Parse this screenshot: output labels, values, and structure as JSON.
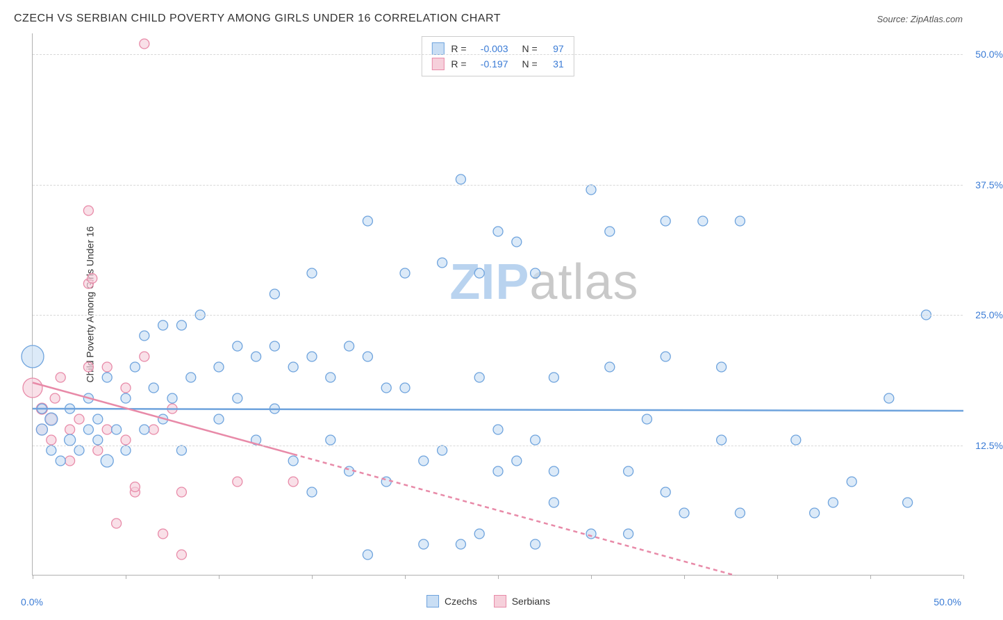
{
  "meta": {
    "title": "CZECH VS SERBIAN CHILD POVERTY AMONG GIRLS UNDER 16 CORRELATION CHART",
    "source": "Source: ZipAtlas.com",
    "watermark_a": "ZIP",
    "watermark_b": "atlas",
    "watermark_color_a": "#b9d3ef",
    "watermark_color_b": "#c9c9c9"
  },
  "chart": {
    "type": "scatter",
    "ylabel": "Child Poverty Among Girls Under 16",
    "xlim": [
      0,
      50
    ],
    "ylim": [
      0,
      52
    ],
    "y_ticks": [
      12.5,
      25.0,
      37.5,
      50.0
    ],
    "y_tick_labels": [
      "12.5%",
      "25.0%",
      "37.5%",
      "50.0%"
    ],
    "x_origin_label": "0.0%",
    "x_max_label": "50.0%",
    "x_tick_positions": [
      0,
      5,
      10,
      15,
      20,
      25,
      30,
      35,
      40,
      45,
      50
    ],
    "background_color": "#ffffff",
    "grid_color": "#d8d8d8",
    "axis_color": "#b0b0b0",
    "series": [
      {
        "name": "Czechs",
        "fill": "#c9def4",
        "stroke": "#6ea3dd",
        "R": "-0.003",
        "N": "97",
        "stat_color": "#3a7bd5",
        "trend": {
          "y_at_x0": 16.0,
          "y_at_x50": 15.8,
          "solid_to_x": 50
        },
        "points": [
          {
            "x": 0,
            "y": 21,
            "r": 16
          },
          {
            "x": 0.5,
            "y": 14,
            "r": 8
          },
          {
            "x": 0.5,
            "y": 16,
            "r": 7
          },
          {
            "x": 1,
            "y": 12,
            "r": 7
          },
          {
            "x": 1,
            "y": 15,
            "r": 9
          },
          {
            "x": 1.5,
            "y": 11,
            "r": 7
          },
          {
            "x": 2,
            "y": 13,
            "r": 8
          },
          {
            "x": 2,
            "y": 16,
            "r": 7
          },
          {
            "x": 2.5,
            "y": 12,
            "r": 7
          },
          {
            "x": 3,
            "y": 14,
            "r": 7
          },
          {
            "x": 3,
            "y": 17,
            "r": 7
          },
          {
            "x": 3.5,
            "y": 13,
            "r": 7
          },
          {
            "x": 3.5,
            "y": 15,
            "r": 7
          },
          {
            "x": 4,
            "y": 11,
            "r": 9
          },
          {
            "x": 4,
            "y": 19,
            "r": 7
          },
          {
            "x": 4.5,
            "y": 14,
            "r": 7
          },
          {
            "x": 5,
            "y": 12,
            "r": 7
          },
          {
            "x": 5,
            "y": 17,
            "r": 7
          },
          {
            "x": 5.5,
            "y": 20,
            "r": 7
          },
          {
            "x": 6,
            "y": 14,
            "r": 7
          },
          {
            "x": 6,
            "y": 23,
            "r": 7
          },
          {
            "x": 6.5,
            "y": 18,
            "r": 7
          },
          {
            "x": 7,
            "y": 15,
            "r": 7
          },
          {
            "x": 7,
            "y": 24,
            "r": 7
          },
          {
            "x": 7.5,
            "y": 17,
            "r": 7
          },
          {
            "x": 8,
            "y": 24,
            "r": 7
          },
          {
            "x": 8,
            "y": 12,
            "r": 7
          },
          {
            "x": 8.5,
            "y": 19,
            "r": 7
          },
          {
            "x": 9,
            "y": 25,
            "r": 7
          },
          {
            "x": 10,
            "y": 20,
            "r": 7
          },
          {
            "x": 10,
            "y": 15,
            "r": 7
          },
          {
            "x": 11,
            "y": 22,
            "r": 7
          },
          {
            "x": 11,
            "y": 17,
            "r": 7
          },
          {
            "x": 12,
            "y": 21,
            "r": 7
          },
          {
            "x": 12,
            "y": 13,
            "r": 7
          },
          {
            "x": 13,
            "y": 27,
            "r": 7
          },
          {
            "x": 13,
            "y": 22,
            "r": 7
          },
          {
            "x": 13,
            "y": 16,
            "r": 7
          },
          {
            "x": 14,
            "y": 20,
            "r": 7
          },
          {
            "x": 14,
            "y": 11,
            "r": 7
          },
          {
            "x": 15,
            "y": 21,
            "r": 7
          },
          {
            "x": 15,
            "y": 29,
            "r": 7
          },
          {
            "x": 15,
            "y": 8,
            "r": 7
          },
          {
            "x": 16,
            "y": 19,
            "r": 7
          },
          {
            "x": 16,
            "y": 13,
            "r": 7
          },
          {
            "x": 17,
            "y": 22,
            "r": 7
          },
          {
            "x": 17,
            "y": 10,
            "r": 7
          },
          {
            "x": 18,
            "y": 21,
            "r": 7
          },
          {
            "x": 18,
            "y": 34,
            "r": 7
          },
          {
            "x": 18,
            "y": 2,
            "r": 7
          },
          {
            "x": 19,
            "y": 18,
            "r": 7
          },
          {
            "x": 19,
            "y": 9,
            "r": 7
          },
          {
            "x": 20,
            "y": 29,
            "r": 7
          },
          {
            "x": 20,
            "y": 18,
            "r": 7
          },
          {
            "x": 21,
            "y": 3,
            "r": 7
          },
          {
            "x": 21,
            "y": 11,
            "r": 7
          },
          {
            "x": 22,
            "y": 30,
            "r": 7
          },
          {
            "x": 22,
            "y": 12,
            "r": 7
          },
          {
            "x": 23,
            "y": 38,
            "r": 7
          },
          {
            "x": 23,
            "y": 3,
            "r": 7
          },
          {
            "x": 24,
            "y": 19,
            "r": 7
          },
          {
            "x": 24,
            "y": 4,
            "r": 7
          },
          {
            "x": 24,
            "y": 29,
            "r": 7
          },
          {
            "x": 25,
            "y": 10,
            "r": 7
          },
          {
            "x": 25,
            "y": 14,
            "r": 7
          },
          {
            "x": 25,
            "y": 33,
            "r": 7
          },
          {
            "x": 26,
            "y": 32,
            "r": 7
          },
          {
            "x": 26,
            "y": 11,
            "r": 7
          },
          {
            "x": 27,
            "y": 3,
            "r": 7
          },
          {
            "x": 27,
            "y": 13,
            "r": 7
          },
          {
            "x": 27,
            "y": 29,
            "r": 7
          },
          {
            "x": 28,
            "y": 7,
            "r": 7
          },
          {
            "x": 28,
            "y": 10,
            "r": 7
          },
          {
            "x": 28,
            "y": 19,
            "r": 7
          },
          {
            "x": 30,
            "y": 37,
            "r": 7
          },
          {
            "x": 30,
            "y": 4,
            "r": 7
          },
          {
            "x": 31,
            "y": 20,
            "r": 7
          },
          {
            "x": 31,
            "y": 33,
            "r": 7
          },
          {
            "x": 32,
            "y": 10,
            "r": 7
          },
          {
            "x": 32,
            "y": 4,
            "r": 7
          },
          {
            "x": 34,
            "y": 34,
            "r": 7
          },
          {
            "x": 34,
            "y": 8,
            "r": 7
          },
          {
            "x": 34,
            "y": 21,
            "r": 7
          },
          {
            "x": 35,
            "y": 6,
            "r": 7
          },
          {
            "x": 36,
            "y": 34,
            "r": 7
          },
          {
            "x": 37,
            "y": 13,
            "r": 7
          },
          {
            "x": 37,
            "y": 20,
            "r": 7
          },
          {
            "x": 38,
            "y": 6,
            "r": 7
          },
          {
            "x": 38,
            "y": 34,
            "r": 7
          },
          {
            "x": 41,
            "y": 13,
            "r": 7
          },
          {
            "x": 42,
            "y": 6,
            "r": 7
          },
          {
            "x": 43,
            "y": 7,
            "r": 7
          },
          {
            "x": 46,
            "y": 17,
            "r": 7
          },
          {
            "x": 47,
            "y": 7,
            "r": 7
          },
          {
            "x": 48,
            "y": 25,
            "r": 7
          },
          {
            "x": 44,
            "y": 9,
            "r": 7
          },
          {
            "x": 33,
            "y": 15,
            "r": 7
          }
        ]
      },
      {
        "name": "Serbians",
        "fill": "#f6d0db",
        "stroke": "#e88aa8",
        "R": "-0.197",
        "N": "31",
        "stat_color": "#3a7bd5",
        "trend": {
          "y_at_x0": 18.5,
          "y_at_x50": -6.0,
          "solid_to_x": 14
        },
        "points": [
          {
            "x": 0,
            "y": 18,
            "r": 14
          },
          {
            "x": 0.5,
            "y": 16,
            "r": 8
          },
          {
            "x": 0.5,
            "y": 14,
            "r": 8
          },
          {
            "x": 1,
            "y": 15,
            "r": 8
          },
          {
            "x": 1,
            "y": 13,
            "r": 7
          },
          {
            "x": 1.2,
            "y": 17,
            "r": 7
          },
          {
            "x": 1.5,
            "y": 19,
            "r": 7
          },
          {
            "x": 2,
            "y": 11,
            "r": 7
          },
          {
            "x": 2,
            "y": 14,
            "r": 7
          },
          {
            "x": 2.5,
            "y": 15,
            "r": 7
          },
          {
            "x": 3,
            "y": 20,
            "r": 7
          },
          {
            "x": 3,
            "y": 28,
            "r": 7
          },
          {
            "x": 3,
            "y": 35,
            "r": 7
          },
          {
            "x": 3.2,
            "y": 28.5,
            "r": 7
          },
          {
            "x": 3.5,
            "y": 12,
            "r": 7
          },
          {
            "x": 4,
            "y": 14,
            "r": 7
          },
          {
            "x": 4,
            "y": 20,
            "r": 7
          },
          {
            "x": 4.5,
            "y": 5,
            "r": 7
          },
          {
            "x": 5,
            "y": 13,
            "r": 7
          },
          {
            "x": 5,
            "y": 18,
            "r": 7
          },
          {
            "x": 5.5,
            "y": 8,
            "r": 7
          },
          {
            "x": 5.5,
            "y": 8.5,
            "r": 7
          },
          {
            "x": 6,
            "y": 21,
            "r": 7
          },
          {
            "x": 6,
            "y": 51,
            "r": 7
          },
          {
            "x": 6.5,
            "y": 14,
            "r": 7
          },
          {
            "x": 7,
            "y": 4,
            "r": 7
          },
          {
            "x": 7.5,
            "y": 16,
            "r": 7
          },
          {
            "x": 8,
            "y": 8,
            "r": 7
          },
          {
            "x": 8,
            "y": 2,
            "r": 7
          },
          {
            "x": 11,
            "y": 9,
            "r": 7
          },
          {
            "x": 14,
            "y": 9,
            "r": 7
          }
        ]
      }
    ],
    "bottom_legend": [
      {
        "label": "Czechs",
        "fill": "#c9def4",
        "stroke": "#6ea3dd"
      },
      {
        "label": "Serbians",
        "fill": "#f6d0db",
        "stroke": "#e88aa8"
      }
    ]
  }
}
